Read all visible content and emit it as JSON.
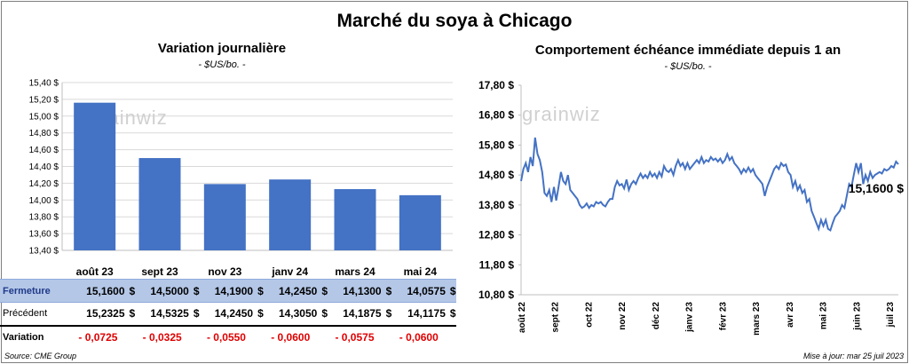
{
  "title": "Marché du soya à Chicago",
  "left": {
    "title": "Variation  journalière",
    "subtitle": "- $US/bo. -"
  },
  "right": {
    "title": "Comportement  échéance immédiate depuis 1 an",
    "subtitle": "- $US/bo. -",
    "last_label": "15,1600 $"
  },
  "watermark": "grainwiz",
  "table": {
    "rows": [
      {
        "label": "Fermeture",
        "values": [
          "15,1600",
          "14,5000",
          "14,1900",
          "14,2450",
          "14,1300",
          "14,0575"
        ]
      },
      {
        "label": "Précédent",
        "values": [
          "15,2325",
          "14,5325",
          "14,2450",
          "14,3050",
          "14,1875",
          "14,1175"
        ]
      },
      {
        "label": "Variation",
        "values": [
          "- 0,0725",
          "- 0,0325",
          "- 0,0550",
          "- 0,0600",
          "- 0,0575",
          "- 0,0600"
        ]
      }
    ],
    "currency": "$"
  },
  "footer": {
    "source": "Source: CME Group",
    "updated": "Mise à jour: mar 25 juil 2023"
  },
  "chart_data": [
    {
      "type": "bar",
      "title": "Variation  journalière",
      "subtitle": "- $US/bo. -",
      "categories": [
        "août 23",
        "sept 23",
        "nov 23",
        "janv 24",
        "mars 24",
        "mai 24"
      ],
      "values": [
        15.16,
        14.5,
        14.19,
        14.245,
        14.13,
        14.0575
      ],
      "ylim": [
        13.4,
        15.4
      ],
      "yticks": [
        "13,40 $",
        "13,60 $",
        "13,80 $",
        "14,00 $",
        "14,20 $",
        "14,40 $",
        "14,60 $",
        "14,80 $",
        "15,00 $",
        "15,20 $",
        "15,40 $"
      ],
      "color": "#4472c4",
      "grid": true
    },
    {
      "type": "line",
      "title": "Comportement  échéance immédiate depuis 1 an",
      "subtitle": "- $US/bo. -",
      "x_labels": [
        "août 22",
        "sept 22",
        "oct 22",
        "nov 22",
        "déc 22",
        "janv 23",
        "févr 23",
        "mars 23",
        "avr 23",
        "mai 23",
        "juin 23",
        "juil 23"
      ],
      "values": [
        14.6,
        15.0,
        15.2,
        14.9,
        15.4,
        15.1,
        16.05,
        15.5,
        15.3,
        14.9,
        14.2,
        14.1,
        14.3,
        13.9,
        14.4,
        13.95,
        14.4,
        14.9,
        14.6,
        14.5,
        14.8,
        14.3,
        14.2,
        14.1,
        14.0,
        13.8,
        13.7,
        13.75,
        13.85,
        13.7,
        13.8,
        13.75,
        13.9,
        13.85,
        13.9,
        13.8,
        13.75,
        13.9,
        14.0,
        14.0,
        14.4,
        14.6,
        14.45,
        14.5,
        14.35,
        14.65,
        14.3,
        14.5,
        14.6,
        14.5,
        14.7,
        14.85,
        14.7,
        14.8,
        14.7,
        14.9,
        14.75,
        14.85,
        14.7,
        14.9,
        14.75,
        15.1,
        14.95,
        14.9,
        15.0,
        14.8,
        15.1,
        15.3,
        15.1,
        15.2,
        15.0,
        15.2,
        15.0,
        15.1,
        15.2,
        15.3,
        15.2,
        15.4,
        15.2,
        15.3,
        15.25,
        15.4,
        15.3,
        15.35,
        15.25,
        15.35,
        15.2,
        15.3,
        15.5,
        15.3,
        15.4,
        15.2,
        15.1,
        15.0,
        14.85,
        15.0,
        14.9,
        15.05,
        14.9,
        15.0,
        14.8,
        14.7,
        14.6,
        14.5,
        14.1,
        14.4,
        14.6,
        14.8,
        15.0,
        15.1,
        15.0,
        15.2,
        15.1,
        15.15,
        14.9,
        14.8,
        14.4,
        14.6,
        14.3,
        14.45,
        14.2,
        14.3,
        13.9,
        14.0,
        13.6,
        13.4,
        13.2,
        13.0,
        13.3,
        13.1,
        13.3,
        13.0,
        12.95,
        13.2,
        13.4,
        13.5,
        13.6,
        13.8,
        13.7,
        14.1,
        14.5,
        14.4,
        14.8,
        15.2,
        14.9,
        15.2,
        14.5,
        14.8,
        14.6,
        14.9,
        14.7,
        14.8,
        14.85,
        14.9,
        14.85,
        15.0,
        14.95,
        15.0,
        15.1,
        15.05,
        15.25,
        15.16
      ],
      "ylim": [
        10.8,
        17.8
      ],
      "yticks": [
        "10,80 $",
        "11,80 $",
        "12,80 $",
        "13,80 $",
        "14,80 $",
        "15,80 $",
        "16,80 $",
        "17,80 $"
      ],
      "last_label": "15,1600 $",
      "color": "#4472c4",
      "grid": false
    }
  ]
}
